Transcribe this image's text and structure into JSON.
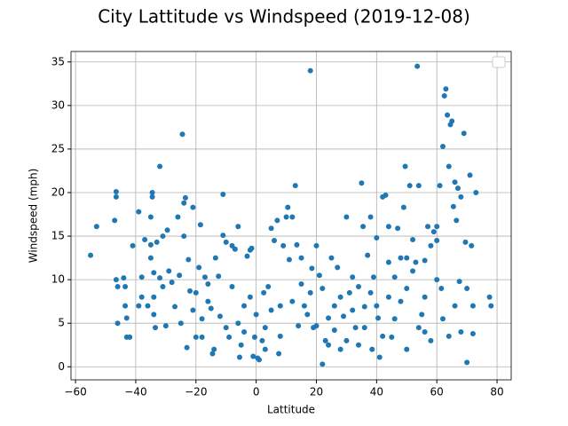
{
  "chart_data": {
    "type": "scatter",
    "title": "City Lattitude vs Windspeed (2019-12-08)",
    "x_label": "Lattitude",
    "y_label": "Windspeed (mph)",
    "color": "#1f77b4",
    "grid": true,
    "legend": "upper right",
    "xlim": [
      -61.5,
      84.7
    ],
    "ylim": [
      -1.5,
      36.2
    ],
    "xticks": [
      {
        "value": -60,
        "label": "−60"
      },
      {
        "value": -40,
        "label": "−40"
      },
      {
        "value": -20,
        "label": "−20"
      },
      0,
      20,
      40,
      60,
      80
    ],
    "yticks": [
      0,
      5,
      10,
      15,
      20,
      25,
      30,
      35
    ],
    "x": [
      -55,
      -53,
      -47,
      -46.5,
      -46.5,
      -46.5,
      -46,
      -46,
      -44,
      -43.5,
      -43.5,
      -43,
      -43,
      -42,
      -41,
      -39,
      -39,
      -38,
      -38,
      -37,
      -36,
      -35,
      -35,
      -35,
      -34.5,
      -34.5,
      -34,
      -34,
      -34,
      -33.5,
      -33,
      -32,
      -32,
      -31,
      -31,
      -30,
      -29.5,
      -29,
      -28,
      -27,
      -26,
      -25.5,
      -25,
      -24.5,
      -24,
      -24,
      -23.5,
      -23,
      -22.5,
      -22,
      -21,
      -21,
      -20,
      -19,
      -18.5,
      -18,
      -17,
      -16,
      -15,
      -14.5,
      -14,
      -13.5,
      -12.5,
      -12,
      -11,
      -11,
      -10,
      -10,
      -9,
      -8,
      -8,
      -7,
      -6,
      -5.5,
      -5,
      -4,
      -3,
      -2,
      -1.5,
      -1,
      -0.5,
      0,
      0.5,
      1,
      2,
      2.5,
      3,
      4,
      5,
      6,
      7,
      7.5,
      8,
      9,
      10,
      10.5,
      11,
      12,
      13,
      13.5,
      14,
      15,
      16,
      17,
      18,
      18.5,
      19,
      20,
      21,
      22,
      23,
      24,
      25,
      26,
      27,
      28,
      29,
      30,
      31,
      32,
      33,
      34,
      35,
      35.5,
      36,
      37,
      38,
      38.5,
      39,
      40,
      40.5,
      41,
      42,
      43,
      44,
      45,
      46,
      47,
      48,
      49,
      49.5,
      50,
      51,
      52,
      53,
      53.5,
      54,
      55,
      56,
      57,
      58,
      59,
      60,
      61,
      61.5,
      62,
      62.5,
      63,
      63.5,
      64,
      64.5,
      65,
      65.5,
      66,
      66.5,
      67,
      67.5,
      68,
      69,
      69.5,
      70,
      71,
      71.5,
      72,
      73,
      77.5,
      78,
      -20,
      -18,
      -16,
      -6,
      -4,
      -2,
      3,
      5,
      8,
      12,
      15,
      18,
      20,
      22,
      24,
      26,
      28,
      30,
      32,
      34,
      36,
      38,
      40,
      42,
      44,
      46,
      48,
      50,
      52,
      54,
      56,
      58,
      60,
      62,
      64,
      66,
      68,
      70,
      72,
      44,
      50,
      56,
      60
    ],
    "values": [
      12.8,
      16.1,
      16.8,
      20.1,
      19.5,
      10,
      9.2,
      5,
      10.2,
      9.2,
      7,
      5.6,
      3.4,
      3.4,
      13.9,
      17.8,
      7,
      10.3,
      8,
      14.6,
      7,
      17.2,
      14,
      12.5,
      20,
      19.5,
      10.8,
      8,
      6,
      4.5,
      14.3,
      23,
      10.2,
      15,
      9.2,
      4.7,
      15.7,
      11,
      9.7,
      6.9,
      17.2,
      10.5,
      5,
      26.7,
      18.8,
      15,
      19.4,
      2.2,
      12.3,
      8.7,
      18.3,
      6.5,
      3.4,
      11.4,
      16.3,
      3.4,
      10.3,
      7.5,
      6.7,
      1.5,
      2,
      12.5,
      10.4,
      5.8,
      19.8,
      15.1,
      14.3,
      4.5,
      3.4,
      13.9,
      9.2,
      13.5,
      16.1,
      1.1,
      2.5,
      7,
      12.7,
      13.4,
      13.6,
      1.2,
      3.4,
      6,
      1,
      0.8,
      3,
      8.5,
      4.5,
      9.2,
      15.9,
      14.5,
      16.8,
      1.5,
      7,
      13.9,
      17.2,
      18.3,
      12.3,
      17.2,
      20.8,
      14,
      4.7,
      12.5,
      7,
      6,
      34,
      11.3,
      4.5,
      13.9,
      10.5,
      0.3,
      3,
      5.6,
      12.5,
      7,
      11.4,
      2,
      5.8,
      17.2,
      8.5,
      10.3,
      4.5,
      9.2,
      21.1,
      16.1,
      6.9,
      12.8,
      17.2,
      2,
      10.3,
      14.8,
      5.6,
      1.1,
      19.5,
      19.7,
      16.1,
      3.4,
      10.3,
      15.9,
      12.5,
      18.3,
      23,
      9,
      20.8,
      14.6,
      12,
      34.5,
      20.8,
      6,
      4,
      16.1,
      13.9,
      15.5,
      16.1,
      20.8,
      9,
      25.3,
      31.1,
      31.9,
      28.9,
      23,
      27.8,
      28.2,
      18.4,
      21.2,
      16.8,
      20.5,
      9.8,
      19.5,
      26.8,
      14.3,
      0.5,
      22,
      13.9,
      7,
      20,
      8,
      7,
      8.5,
      5.5,
      9.5,
      5,
      4,
      8,
      2,
      6.5,
      3.5,
      7.5,
      9.5,
      8.5,
      4.7,
      9,
      2.5,
      4.2,
      8,
      3,
      6.5,
      2.5,
      4.5,
      8.5,
      7,
      3.5,
      8,
      5.5,
      7.5,
      2,
      11,
      4.5,
      8,
      3,
      10,
      5.5,
      3.5,
      7,
      4,
      9,
      3.8,
      12,
      12.5,
      12.2,
      14.5
    ]
  }
}
